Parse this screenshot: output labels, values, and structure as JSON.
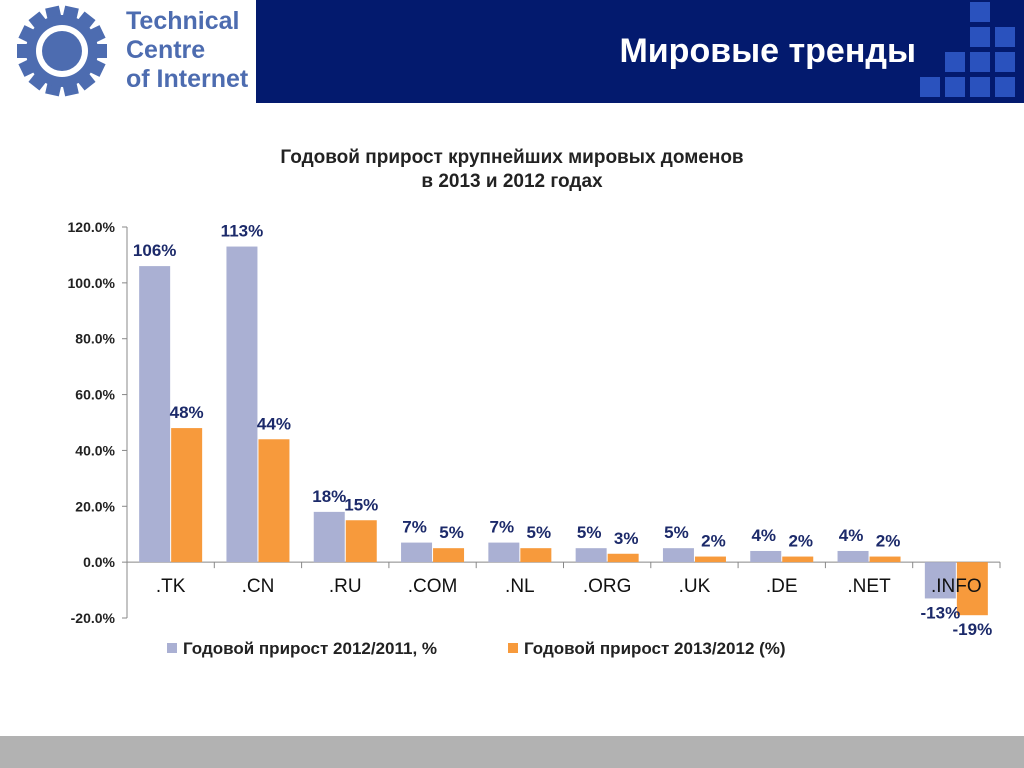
{
  "header": {
    "logo_text": "Technical\nCentre\nof Internet",
    "title": "Мировые тренды",
    "colors": {
      "background": "#031a6e",
      "logo_text": "#4d6cb0",
      "squares": "#2a52be"
    }
  },
  "chart_data": {
    "type": "bar",
    "title": "Годовой прирост крупнейших мировых доменов\nв 2013 и 2012 годах",
    "categories": [
      ".TK",
      ".CN",
      ".RU",
      ".COM",
      ".NL",
      ".ORG",
      ".UK",
      ".DE",
      ".NET",
      ".INFO"
    ],
    "series": [
      {
        "name": "Годовой прирост 2012/2011, %",
        "color": "#aab0d3",
        "values": [
          106,
          113,
          18,
          7,
          7,
          5,
          5,
          4,
          4,
          -13
        ],
        "labels": [
          "106%",
          "113%",
          "18%",
          "7%",
          "7%",
          "5%",
          "5%",
          "4%",
          "4%",
          "-13%"
        ]
      },
      {
        "name": "Годовой прирост 2013/2012 (%)",
        "color": "#f79a3c",
        "values": [
          48,
          44,
          15,
          5,
          5,
          3,
          2,
          2,
          2,
          -19
        ],
        "labels": [
          "48%",
          "44%",
          "15%",
          "5%",
          "5%",
          "3%",
          "2%",
          "2%",
          "2%",
          "-19%"
        ]
      }
    ],
    "ylim": [
      -20,
      120
    ],
    "yticks": [
      -20,
      0,
      20,
      40,
      60,
      80,
      100,
      120
    ],
    "ytick_labels": [
      "-20.0%",
      "0.0%",
      "20.0%",
      "40.0%",
      "60.0%",
      "80.0%",
      "100.0%",
      "120.0%"
    ],
    "grid": false,
    "legend_position": "bottom"
  }
}
